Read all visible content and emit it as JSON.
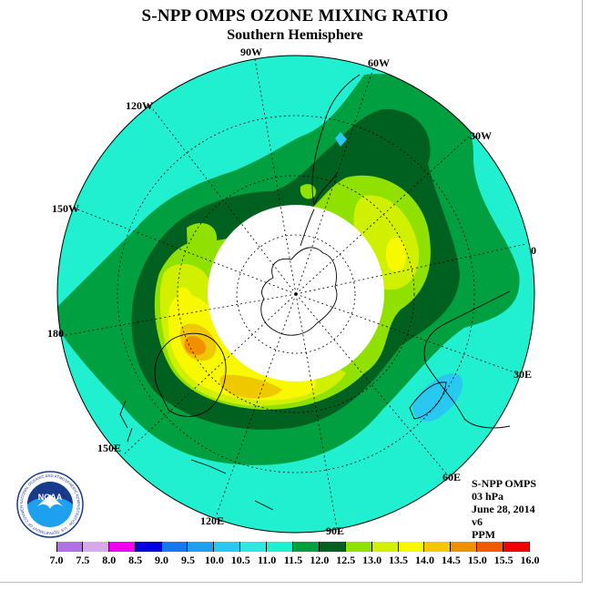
{
  "title": "S-NPP OMPS OZONE MIXING RATIO",
  "subtitle": "Southern Hemisphere",
  "longitude_labels": {
    "w90": "90W",
    "w60": "60W",
    "w30": "30W",
    "w120": "120W",
    "w150": "150W",
    "e0": "0",
    "w180": "180",
    "e30": "30E",
    "e150": "150E",
    "e60": "60E",
    "e120": "120E",
    "e90": "90E"
  },
  "info": {
    "product": "S-NPP OMPS",
    "level": "03 hPa",
    "date": "June 28, 2014",
    "version": "v6",
    "units": "PPM"
  },
  "logo": {
    "text": "NOAA",
    "ring_text": "NATIONAL OCEANIC AND ATMOSPHERIC ADMINISTRATION · U.S. DEPARTMENT OF COMMERCE"
  },
  "colorbar": {
    "labels": [
      "7.0",
      "7.5",
      "8.0",
      "8.5",
      "9.0",
      "9.5",
      "10.0",
      "10.5",
      "11.0",
      "11.5",
      "12.0",
      "12.5",
      "13.0",
      "13.5",
      "14.0",
      "14.5",
      "15.0",
      "15.5",
      "16.0"
    ],
    "colors": [
      "#b070e0",
      "#d8a8e8",
      "#f000f0",
      "#0000e0",
      "#1478f0",
      "#1ea0f0",
      "#28c8f0",
      "#30e6e0",
      "#20f0d0",
      "#00a040",
      "#006020",
      "#90e000",
      "#d0f000",
      "#f8f800",
      "#f0c800",
      "#f09000",
      "#f05a00",
      "#f00000",
      "#8b5a2b"
    ]
  },
  "colors": {
    "ocean_field": "#20f0d0",
    "mid_green": "#00a040",
    "dark_green": "#006020",
    "yellow_green": "#90e000",
    "light_yellow": "#d0f000",
    "yellow": "#f8f800",
    "gold": "#f0c800",
    "orange": "#f09000",
    "cyan_low": "#28c8f0"
  }
}
